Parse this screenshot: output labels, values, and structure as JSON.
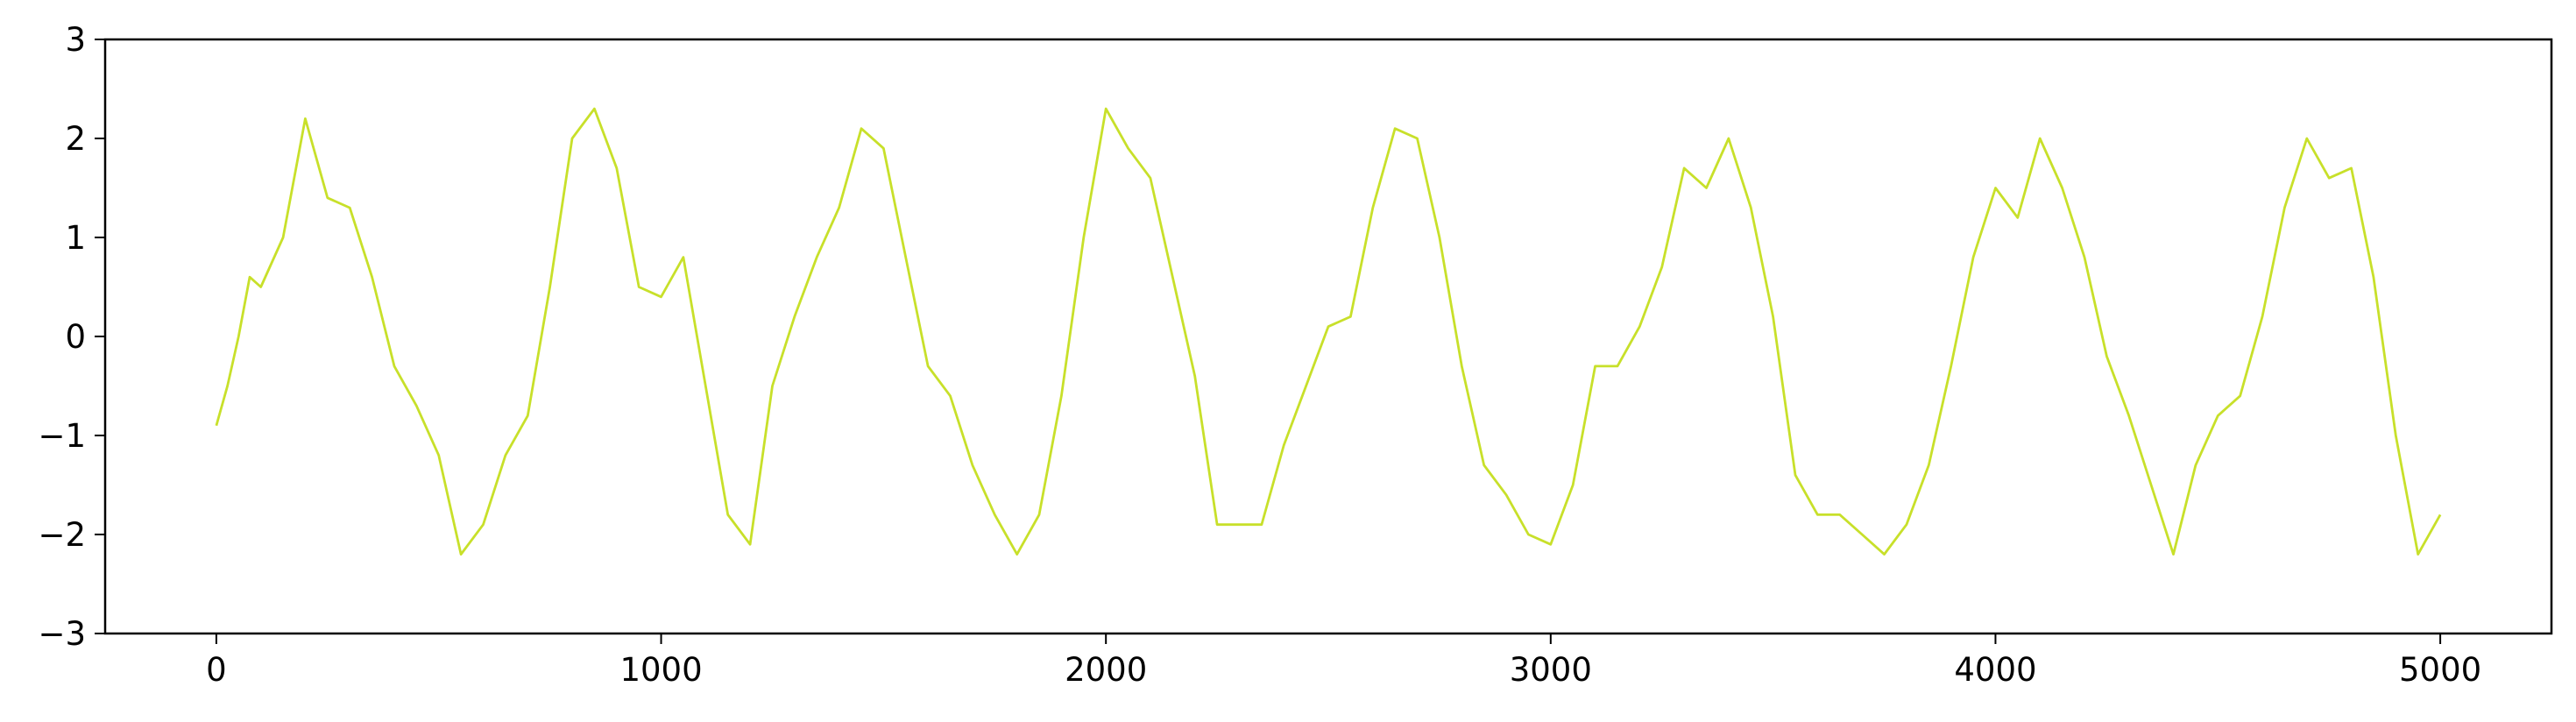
{
  "chart_data": {
    "type": "line",
    "title": "",
    "xlabel": "",
    "ylabel": "",
    "xlim": [
      -250,
      5250
    ],
    "ylim": [
      -3,
      3
    ],
    "x_ticks": [
      0,
      1000,
      2000,
      3000,
      4000,
      5000
    ],
    "y_ticks": [
      -3,
      -2,
      -1,
      0,
      1,
      2,
      3
    ],
    "x_tick_labels": [
      "0",
      "1000",
      "2000",
      "3000",
      "4000",
      "5000"
    ],
    "y_tick_labels": [
      "−3",
      "−2",
      "−1",
      "0",
      "1",
      "2",
      "3"
    ],
    "grid": false,
    "legend": "none",
    "line_color": "#c8e02a",
    "series": [
      {
        "x": [
          0,
          25,
          50,
          75,
          100,
          150,
          200,
          250,
          300,
          350,
          400,
          450,
          500,
          550,
          600,
          650,
          700,
          750,
          800,
          850,
          900,
          950,
          1000,
          1050,
          1100,
          1150,
          1200,
          1250,
          1300,
          1350,
          1400,
          1450,
          1500,
          1550,
          1600,
          1650,
          1700,
          1750,
          1800,
          1850,
          1900,
          1950,
          2000,
          2050,
          2100,
          2150,
          2200,
          2250,
          2300,
          2350,
          2400,
          2450,
          2500,
          2550,
          2600,
          2650,
          2700,
          2750,
          2800,
          2850,
          2900,
          2950,
          3000,
          3050,
          3100,
          3150,
          3200,
          3250,
          3300,
          3350,
          3400,
          3450,
          3500,
          3550,
          3600,
          3650,
          3700,
          3750,
          3800,
          3850,
          3900,
          3950,
          4000,
          4050,
          4100,
          4150,
          4200,
          4250,
          4300,
          4350,
          4400,
          4450,
          4500,
          4550,
          4600,
          4650,
          4700,
          4750,
          4800,
          4850,
          4900,
          4950,
          5000
        ],
        "y": [
          -0.9,
          -0.5,
          0.0,
          0.6,
          0.5,
          1.0,
          2.2,
          1.4,
          1.3,
          0.6,
          -0.3,
          -0.7,
          -1.2,
          -2.2,
          -1.9,
          -1.2,
          -0.8,
          0.5,
          2.0,
          2.3,
          1.7,
          0.5,
          0.4,
          0.8,
          -0.5,
          -1.8,
          -2.1,
          -0.5,
          0.2,
          0.8,
          1.3,
          2.1,
          1.9,
          0.8,
          -0.3,
          -0.6,
          -1.3,
          -1.8,
          -2.2,
          -1.8,
          -0.6,
          1.0,
          2.3,
          1.9,
          1.6,
          0.6,
          -0.4,
          -1.9,
          -1.9,
          -1.9,
          -1.1,
          -0.5,
          0.1,
          0.2,
          1.3,
          2.1,
          2.0,
          1.0,
          -0.3,
          -1.3,
          -1.6,
          -2.0,
          -2.1,
          -1.5,
          -0.3,
          -0.3,
          0.1,
          0.7,
          1.7,
          1.5,
          2.0,
          1.3,
          0.2,
          -1.4,
          -1.8,
          -1.8,
          -2.0,
          -2.2,
          -1.9,
          -1.3,
          -0.3,
          0.8,
          1.5,
          1.2,
          2.0,
          1.5,
          0.8,
          -0.2,
          -0.8,
          -1.5,
          -2.2,
          -1.3,
          -0.8,
          -0.6,
          0.2,
          1.3,
          2.0,
          1.6,
          1.7,
          0.6,
          -1.0,
          -2.2,
          -1.8
        ]
      }
    ]
  }
}
